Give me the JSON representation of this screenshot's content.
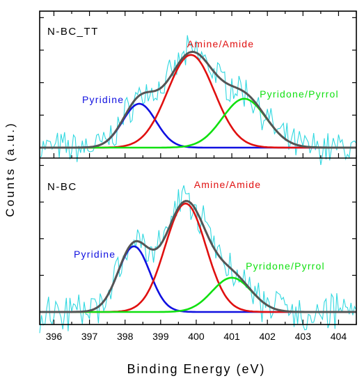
{
  "chart_data": {
    "type": "line",
    "xlabel": "Binding Energy (eV)",
    "ylabel": "Counts (a.u.)",
    "xlim": [
      395.6,
      404.5
    ],
    "x_ticks": [
      "396",
      "397",
      "398",
      "399",
      "400",
      "401",
      "402",
      "403",
      "404"
    ],
    "x_tick_values": [
      396,
      397,
      398,
      399,
      400,
      401,
      402,
      403,
      404
    ],
    "grid": false,
    "legend": "none",
    "panels": [
      {
        "title": "N-BC_TT",
        "components": [
          {
            "name": "Pyridine",
            "center_eV": 398.4,
            "fwhm_eV": 1.1,
            "rel_height": 0.35,
            "color": "#1010e0"
          },
          {
            "name": "Amine/Amide",
            "center_eV": 399.85,
            "fwhm_eV": 1.55,
            "rel_height": 0.74,
            "color": "#e01010"
          },
          {
            "name": "Pyridone/Pyrrol",
            "center_eV": 401.35,
            "fwhm_eV": 1.45,
            "rel_height": 0.39,
            "color": "#10e010"
          }
        ],
        "envelope_color": "#555555",
        "raw_color": "#30d8e0"
      },
      {
        "title": "N-BC",
        "components": [
          {
            "name": "Pyridine",
            "center_eV": 398.25,
            "fwhm_eV": 1.05,
            "rel_height": 0.46,
            "color": "#1010e0"
          },
          {
            "name": "Amine/Amide",
            "center_eV": 399.7,
            "fwhm_eV": 1.35,
            "rel_height": 0.76,
            "color": "#e01010"
          },
          {
            "name": "Pyridone/Pyrrol",
            "center_eV": 401.0,
            "fwhm_eV": 1.3,
            "rel_height": 0.24,
            "color": "#10e010"
          }
        ],
        "envelope_color": "#555555",
        "raw_color": "#30d8e0"
      }
    ]
  }
}
